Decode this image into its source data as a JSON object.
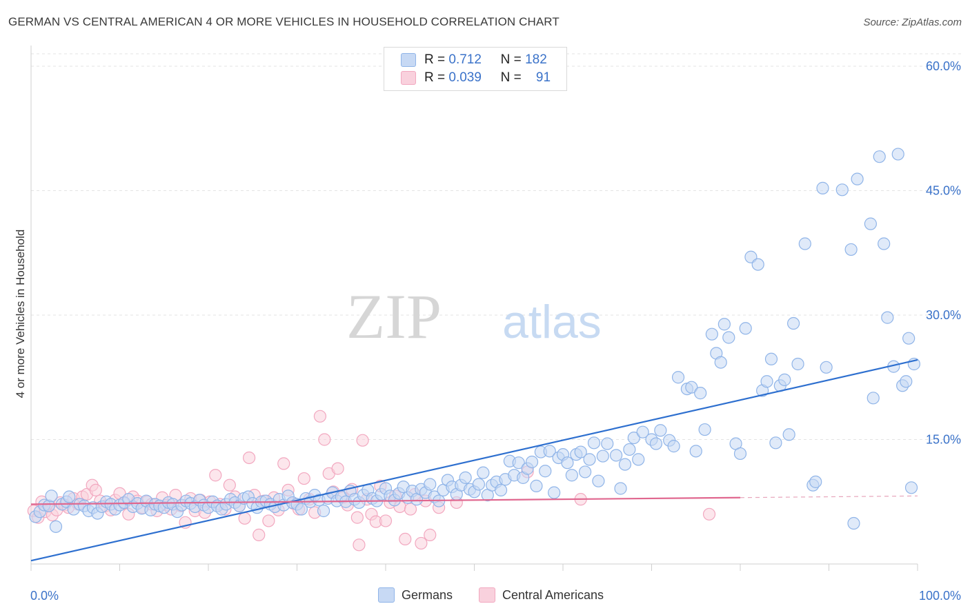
{
  "title": "GERMAN VS CENTRAL AMERICAN 4 OR MORE VEHICLES IN HOUSEHOLD CORRELATION CHART",
  "source": "Source: ZipAtlas.com",
  "watermark": {
    "zip": "ZIP",
    "atlas": "atlas"
  },
  "legend": {
    "rows": [
      {
        "r_label": "R =",
        "r_value": "0.712",
        "n_label": "N =",
        "n_value": "182"
      },
      {
        "r_label": "R =",
        "r_value": "0.039",
        "n_label": "N =",
        "n_value": "91"
      }
    ]
  },
  "bottom_legend": {
    "german": "Germans",
    "central": "Central Americans"
  },
  "chart_data": {
    "type": "scatter",
    "title": "GERMAN VS CENTRAL AMERICAN 4 OR MORE VEHICLES IN HOUSEHOLD CORRELATION CHART",
    "xlabel": "",
    "ylabel": "4 or more Vehicles in Household",
    "xlim": [
      0,
      100
    ],
    "ylim": [
      0,
      60
    ],
    "x_ticks": [
      {
        "value": 0,
        "label": "0.0%"
      },
      {
        "value": 100,
        "label": "100.0%"
      }
    ],
    "y_ticks": [
      {
        "value": 15,
        "label": "15.0%"
      },
      {
        "value": 30,
        "label": "30.0%"
      },
      {
        "value": 45,
        "label": "45.0%"
      },
      {
        "value": 60,
        "label": "60.0%"
      }
    ],
    "grid": true,
    "series": [
      {
        "name": "Germans",
        "color": "#8fb4e8",
        "line_color": "#2d6fcf",
        "trend": {
          "x": [
            0,
            100
          ],
          "y": [
            0.4,
            24.6
          ]
        },
        "points": [
          [
            0.5,
            5.7
          ],
          [
            1.0,
            6.3
          ],
          [
            1.5,
            7.1
          ],
          [
            2.0,
            7.0
          ],
          [
            2.3,
            8.2
          ],
          [
            2.8,
            4.5
          ],
          [
            3.5,
            7.2
          ],
          [
            4.0,
            7.5
          ],
          [
            4.3,
            8.1
          ],
          [
            4.8,
            6.6
          ],
          [
            5.5,
            7.2
          ],
          [
            6.0,
            7.0
          ],
          [
            6.5,
            6.4
          ],
          [
            7.0,
            6.8
          ],
          [
            7.5,
            6.1
          ],
          [
            8.0,
            6.9
          ],
          [
            8.5,
            7.5
          ],
          [
            9.0,
            7.2
          ],
          [
            9.5,
            6.6
          ],
          [
            10.0,
            7.1
          ],
          [
            10.5,
            7.4
          ],
          [
            11.0,
            7.8
          ],
          [
            11.5,
            6.9
          ],
          [
            12.0,
            7.3
          ],
          [
            12.5,
            6.7
          ],
          [
            13.0,
            7.6
          ],
          [
            13.5,
            6.5
          ],
          [
            14.0,
            7.2
          ],
          [
            14.5,
            7.0
          ],
          [
            15.0,
            6.8
          ],
          [
            15.5,
            7.4
          ],
          [
            16.0,
            7.2
          ],
          [
            16.5,
            6.3
          ],
          [
            17.0,
            7.1
          ],
          [
            17.5,
            7.6
          ],
          [
            18.0,
            7.3
          ],
          [
            18.5,
            6.9
          ],
          [
            19.0,
            7.7
          ],
          [
            19.5,
            7.1
          ],
          [
            20.0,
            6.8
          ],
          [
            20.5,
            7.5
          ],
          [
            21.0,
            7.0
          ],
          [
            21.5,
            6.6
          ],
          [
            22.0,
            7.2
          ],
          [
            22.5,
            7.8
          ],
          [
            23.0,
            7.4
          ],
          [
            23.5,
            7.0
          ],
          [
            24.0,
            7.9
          ],
          [
            24.5,
            8.1
          ],
          [
            25.0,
            7.3
          ],
          [
            25.5,
            6.8
          ],
          [
            26.0,
            7.5
          ],
          [
            26.5,
            7.6
          ],
          [
            27.0,
            7.2
          ],
          [
            27.5,
            6.9
          ],
          [
            28.0,
            7.8
          ],
          [
            28.5,
            7.1
          ],
          [
            29.0,
            8.2
          ],
          [
            29.5,
            7.4
          ],
          [
            30.0,
            7.2
          ],
          [
            30.5,
            6.6
          ],
          [
            31.0,
            7.9
          ],
          [
            31.5,
            7.5
          ],
          [
            32.0,
            8.3
          ],
          [
            32.5,
            7.7
          ],
          [
            33.0,
            6.4
          ],
          [
            33.5,
            7.9
          ],
          [
            34.0,
            8.6
          ],
          [
            34.5,
            7.6
          ],
          [
            35.0,
            8.1
          ],
          [
            35.5,
            7.5
          ],
          [
            36.0,
            8.8
          ],
          [
            36.5,
            7.8
          ],
          [
            37.0,
            7.4
          ],
          [
            37.5,
            8.3
          ],
          [
            38.0,
            8.9
          ],
          [
            38.5,
            7.9
          ],
          [
            39.0,
            7.6
          ],
          [
            39.5,
            8.4
          ],
          [
            40.0,
            9.1
          ],
          [
            40.5,
            8.2
          ],
          [
            41.0,
            7.7
          ],
          [
            41.5,
            8.5
          ],
          [
            42.0,
            9.3
          ],
          [
            42.5,
            8.0
          ],
          [
            43.0,
            8.8
          ],
          [
            43.5,
            7.8
          ],
          [
            44.0,
            9.0
          ],
          [
            44.5,
            8.6
          ],
          [
            45.0,
            9.6
          ],
          [
            45.5,
            8.1
          ],
          [
            46.0,
            7.6
          ],
          [
            46.5,
            8.9
          ],
          [
            47.0,
            10.1
          ],
          [
            47.5,
            9.3
          ],
          [
            48.0,
            8.4
          ],
          [
            48.5,
            9.5
          ],
          [
            49.0,
            10.4
          ],
          [
            49.5,
            9.0
          ],
          [
            50.0,
            8.7
          ],
          [
            50.5,
            9.6
          ],
          [
            51.0,
            11.0
          ],
          [
            51.5,
            8.3
          ],
          [
            52.0,
            9.5
          ],
          [
            52.5,
            9.9
          ],
          [
            53.0,
            8.9
          ],
          [
            53.5,
            10.2
          ],
          [
            54.0,
            12.4
          ],
          [
            54.5,
            10.7
          ],
          [
            55.0,
            12.2
          ],
          [
            55.5,
            10.4
          ],
          [
            56.0,
            11.5
          ],
          [
            56.5,
            12.3
          ],
          [
            57.0,
            9.4
          ],
          [
            57.5,
            13.5
          ],
          [
            58.0,
            11.2
          ],
          [
            58.5,
            13.6
          ],
          [
            59.0,
            8.6
          ],
          [
            59.5,
            12.8
          ],
          [
            60.0,
            13.2
          ],
          [
            60.5,
            12.2
          ],
          [
            61.0,
            10.7
          ],
          [
            61.5,
            13.2
          ],
          [
            62.0,
            13.5
          ],
          [
            62.5,
            11.1
          ],
          [
            63.0,
            12.6
          ],
          [
            63.5,
            14.6
          ],
          [
            64.0,
            10.0
          ],
          [
            64.5,
            13.0
          ],
          [
            65.0,
            14.5
          ],
          [
            66.0,
            13.1
          ],
          [
            66.5,
            9.1
          ],
          [
            67.0,
            12.0
          ],
          [
            67.5,
            13.8
          ],
          [
            68.0,
            15.2
          ],
          [
            68.5,
            12.6
          ],
          [
            69.0,
            15.9
          ],
          [
            70.0,
            15.0
          ],
          [
            70.5,
            14.5
          ],
          [
            71.0,
            16.1
          ],
          [
            72.0,
            14.9
          ],
          [
            72.5,
            14.2
          ],
          [
            73.0,
            22.5
          ],
          [
            74.0,
            21.1
          ],
          [
            74.5,
            21.3
          ],
          [
            75.0,
            13.6
          ],
          [
            75.5,
            20.6
          ],
          [
            76.0,
            16.2
          ],
          [
            76.8,
            27.7
          ],
          [
            77.3,
            25.4
          ],
          [
            77.8,
            24.3
          ],
          [
            78.2,
            28.9
          ],
          [
            78.7,
            27.3
          ],
          [
            79.5,
            14.5
          ],
          [
            80.0,
            13.3
          ],
          [
            80.6,
            28.4
          ],
          [
            81.2,
            37.0
          ],
          [
            82.0,
            36.1
          ],
          [
            82.5,
            20.9
          ],
          [
            83.0,
            22.0
          ],
          [
            83.5,
            24.7
          ],
          [
            84.0,
            14.6
          ],
          [
            84.5,
            21.5
          ],
          [
            85.0,
            22.2
          ],
          [
            85.5,
            15.6
          ],
          [
            86.0,
            29.0
          ],
          [
            86.5,
            24.1
          ],
          [
            87.3,
            38.6
          ],
          [
            88.2,
            9.5
          ],
          [
            88.5,
            9.9
          ],
          [
            89.3,
            45.3
          ],
          [
            89.7,
            23.7
          ],
          [
            91.5,
            45.1
          ],
          [
            92.5,
            37.9
          ],
          [
            92.8,
            4.9
          ],
          [
            93.2,
            46.4
          ],
          [
            94.7,
            41.0
          ],
          [
            95.7,
            49.1
          ],
          [
            96.2,
            38.6
          ],
          [
            96.6,
            29.7
          ],
          [
            97.3,
            23.8
          ],
          [
            97.8,
            49.4
          ],
          [
            98.3,
            21.5
          ],
          [
            98.7,
            22.0
          ],
          [
            99.0,
            27.2
          ],
          [
            99.3,
            9.2
          ],
          [
            99.6,
            24.1
          ],
          [
            95.0,
            20.0
          ]
        ]
      },
      {
        "name": "Central Americans",
        "color": "#f4a9c0",
        "line_color": "#e0678f",
        "trend": {
          "x": [
            0,
            80
          ],
          "y": [
            7.2,
            8.0
          ]
        },
        "trend_dashed": {
          "x": [
            80,
            100
          ],
          "y": [
            8.0,
            8.2
          ]
        },
        "points": [
          [
            0.3,
            6.4
          ],
          [
            0.8,
            5.6
          ],
          [
            1.2,
            7.5
          ],
          [
            1.6,
            6.3
          ],
          [
            2.0,
            7.0
          ],
          [
            2.4,
            5.9
          ],
          [
            2.9,
            6.5
          ],
          [
            3.3,
            7.4
          ],
          [
            3.8,
            7.1
          ],
          [
            4.2,
            6.8
          ],
          [
            4.8,
            7.9
          ],
          [
            5.3,
            7.2
          ],
          [
            5.8,
            8.1
          ],
          [
            6.3,
            8.4
          ],
          [
            6.9,
            9.5
          ],
          [
            7.3,
            8.9
          ],
          [
            7.8,
            7.6
          ],
          [
            8.4,
            7.0
          ],
          [
            9.0,
            6.5
          ],
          [
            9.5,
            7.7
          ],
          [
            10.0,
            8.5
          ],
          [
            10.5,
            7.3
          ],
          [
            11.0,
            6.0
          ],
          [
            11.5,
            8.1
          ],
          [
            12.0,
            7.6
          ],
          [
            12.6,
            6.8
          ],
          [
            13.1,
            7.5
          ],
          [
            13.6,
            7.2
          ],
          [
            14.2,
            6.4
          ],
          [
            14.8,
            8.0
          ],
          [
            15.3,
            7.1
          ],
          [
            15.8,
            6.6
          ],
          [
            16.3,
            8.3
          ],
          [
            16.9,
            7.0
          ],
          [
            17.4,
            5.0
          ],
          [
            18.0,
            7.9
          ],
          [
            18.5,
            6.4
          ],
          [
            19.1,
            7.7
          ],
          [
            19.6,
            6.2
          ],
          [
            20.2,
            7.5
          ],
          [
            20.8,
            10.7
          ],
          [
            21.3,
            7.2
          ],
          [
            21.9,
            6.6
          ],
          [
            22.4,
            9.5
          ],
          [
            23.0,
            8.1
          ],
          [
            23.5,
            7.0
          ],
          [
            24.1,
            5.5
          ],
          [
            24.6,
            12.8
          ],
          [
            25.2,
            8.3
          ],
          [
            25.7,
            3.5
          ],
          [
            26.3,
            7.6
          ],
          [
            26.8,
            5.2
          ],
          [
            27.4,
            8.0
          ],
          [
            27.9,
            6.5
          ],
          [
            28.5,
            12.1
          ],
          [
            29.0,
            8.9
          ],
          [
            29.6,
            7.3
          ],
          [
            30.2,
            6.6
          ],
          [
            30.8,
            10.3
          ],
          [
            31.4,
            7.8
          ],
          [
            32.0,
            6.2
          ],
          [
            32.6,
            17.8
          ],
          [
            33.1,
            15.0
          ],
          [
            33.6,
            10.9
          ],
          [
            34.1,
            8.7
          ],
          [
            34.6,
            11.5
          ],
          [
            35.2,
            8.0
          ],
          [
            35.7,
            7.1
          ],
          [
            36.2,
            9.0
          ],
          [
            36.8,
            5.6
          ],
          [
            37.4,
            14.9
          ],
          [
            37.9,
            7.8
          ],
          [
            38.4,
            6.0
          ],
          [
            38.9,
            5.1
          ],
          [
            39.4,
            9.4
          ],
          [
            40.0,
            5.2
          ],
          [
            40.5,
            7.4
          ],
          [
            41.1,
            8.2
          ],
          [
            41.6,
            6.9
          ],
          [
            42.2,
            3.0
          ],
          [
            42.8,
            6.6
          ],
          [
            43.3,
            8.4
          ],
          [
            44.0,
            2.5
          ],
          [
            44.5,
            7.6
          ],
          [
            45.0,
            3.5
          ],
          [
            46.0,
            6.8
          ],
          [
            48.0,
            7.4
          ],
          [
            56.0,
            11.1
          ],
          [
            62.0,
            7.8
          ],
          [
            76.5,
            6.0
          ],
          [
            37.0,
            2.3
          ]
        ]
      }
    ]
  },
  "colors": {
    "german_fill": "#c7d9f4",
    "german_stroke": "#8fb4e8",
    "central_fill": "#f9d1dd",
    "central_stroke": "#f2a7bf",
    "axis_label": "#3a72c9",
    "grid": "#e3e3e3"
  }
}
